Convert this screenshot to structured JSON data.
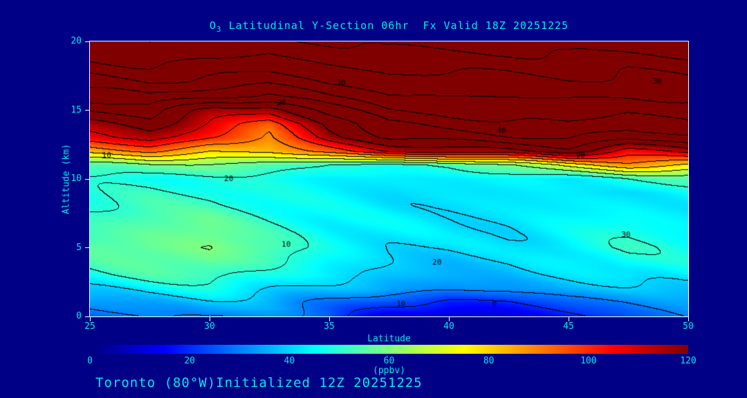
{
  "colors": {
    "background": "#000087",
    "text": "#00e8e8",
    "frame": "#ffffff",
    "contour_line": "#000000"
  },
  "title": {
    "prefix": "O",
    "sub": "3",
    "rest": " Latitudinal Y-Section 06hr  Fx Valid 18Z 20251225"
  },
  "footer": {
    "text": "Toronto (80°W)Initialized 12Z 20251225"
  },
  "axes": {
    "x": {
      "label": "Latitude",
      "ticks": [
        25,
        30,
        35,
        40,
        45,
        50
      ],
      "range": [
        25,
        50
      ]
    },
    "y": {
      "label": "Altitude (km)",
      "ticks": [
        0,
        5,
        10,
        15,
        20
      ],
      "range": [
        0,
        20
      ]
    }
  },
  "colorbar": {
    "label": "(ppbv)",
    "ticks": [
      0,
      20,
      40,
      60,
      80,
      100,
      120
    ],
    "range": [
      0,
      120
    ]
  },
  "chart_data": {
    "type": "heatmap",
    "title": "O3 Latitudinal Y-Section 06hr Fx Valid 18Z 20251225",
    "xlabel": "Latitude",
    "ylabel": "Altitude (km)",
    "units": "ppbv",
    "xlim": [
      25,
      50
    ],
    "ylim": [
      0,
      20
    ],
    "vmin": 0,
    "vmax": 120,
    "contour_interval": 10,
    "legend": "none",
    "grid": "off",
    "lat": [
      25,
      27.5,
      30,
      32.5,
      35,
      37.5,
      40,
      42.5,
      45,
      47.5,
      50
    ],
    "alt": [
      0,
      1,
      2,
      3,
      4,
      5,
      6,
      7,
      8,
      9,
      10,
      11,
      12,
      13,
      14,
      15,
      16,
      17,
      18,
      19,
      20
    ],
    "values": [
      [
        26,
        30,
        32,
        30,
        26,
        14,
        8,
        12,
        18,
        24,
        30
      ],
      [
        32,
        36,
        38,
        35,
        30,
        22,
        18,
        20,
        26,
        30,
        34
      ],
      [
        40,
        44,
        46,
        42,
        38,
        34,
        32,
        33,
        36,
        38,
        40
      ],
      [
        48,
        52,
        54,
        48,
        42,
        38,
        36,
        37,
        40,
        44,
        44
      ],
      [
        52,
        56,
        58,
        52,
        44,
        40,
        38,
        39,
        44,
        48,
        46
      ],
      [
        55,
        58,
        60,
        54,
        46,
        42,
        40,
        41,
        46,
        50,
        46
      ],
      [
        54,
        57,
        58,
        52,
        46,
        43,
        41,
        42,
        45,
        48,
        45
      ],
      [
        52,
        55,
        56,
        50,
        45,
        43,
        42,
        42,
        44,
        46,
        44
      ],
      [
        50,
        52,
        52,
        48,
        44,
        42,
        42,
        42,
        43,
        44,
        43
      ],
      [
        48,
        50,
        50,
        46,
        44,
        42,
        42,
        42,
        42,
        43,
        44
      ],
      [
        46,
        48,
        48,
        46,
        44,
        43,
        43,
        43,
        44,
        50,
        52
      ],
      [
        55,
        60,
        58,
        55,
        50,
        48,
        50,
        60,
        75,
        85,
        80
      ],
      [
        85,
        92,
        80,
        82,
        95,
        110,
        115,
        118,
        125,
        105,
        115
      ],
      [
        105,
        115,
        100,
        90,
        115,
        130,
        135,
        138,
        140,
        135,
        138
      ],
      [
        115,
        125,
        110,
        95,
        120,
        140,
        145,
        148,
        150,
        145,
        148
      ],
      [
        130,
        135,
        118,
        112,
        135,
        150,
        152,
        154,
        155,
        152,
        154
      ],
      [
        145,
        150,
        140,
        138,
        150,
        158,
        160,
        160,
        162,
        160,
        162
      ],
      [
        155,
        160,
        155,
        152,
        160,
        165,
        166,
        166,
        168,
        166,
        168
      ],
      [
        165,
        168,
        165,
        162,
        168,
        172,
        172,
        172,
        174,
        172,
        174
      ],
      [
        172,
        175,
        172,
        170,
        175,
        178,
        178,
        178,
        180,
        178,
        180
      ],
      [
        178,
        180,
        178,
        176,
        180,
        184,
        184,
        184,
        186,
        186,
        186
      ]
    ],
    "contour_labels": [
      {
        "text": "30",
        "lat": 35.5,
        "alt": 17.0
      },
      {
        "text": "30",
        "lat": 48.7,
        "alt": 17.1
      },
      {
        "text": "20",
        "lat": 33.0,
        "alt": 15.5
      },
      {
        "text": "40",
        "lat": 42.2,
        "alt": 13.5
      },
      {
        "text": "90",
        "lat": 45.5,
        "alt": 11.7
      },
      {
        "text": "10",
        "lat": 25.7,
        "alt": 11.7
      },
      {
        "text": "20",
        "lat": 30.8,
        "alt": 10.0
      },
      {
        "text": "10",
        "lat": 33.2,
        "alt": 5.2
      },
      {
        "text": "30",
        "lat": 47.4,
        "alt": 5.9
      },
      {
        "text": "20",
        "lat": 39.5,
        "alt": 3.9
      },
      {
        "text": "10",
        "lat": 38.0,
        "alt": 0.9
      },
      {
        "text": "0",
        "lat": 41.9,
        "alt": 0.9
      }
    ]
  }
}
